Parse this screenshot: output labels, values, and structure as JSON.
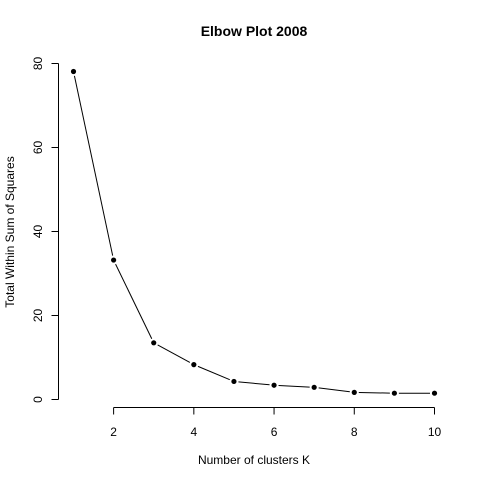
{
  "chart_data": {
    "type": "line",
    "title": "Elbow Plot  2008",
    "xlabel": "Number of clusters K",
    "ylabel": "Total Within Sum of Squares",
    "x": [
      1,
      2,
      3,
      4,
      5,
      6,
      7,
      8,
      9,
      10
    ],
    "values": [
      78.1,
      33.2,
      13.5,
      8.3,
      4.3,
      3.4,
      2.9,
      1.7,
      1.5,
      1.5
    ],
    "xlim": [
      1,
      10
    ],
    "ylim": [
      0,
      80
    ],
    "x_ticks": [
      2,
      4,
      6,
      8,
      10
    ],
    "y_ticks": [
      0,
      20,
      40,
      60,
      80
    ],
    "grid": false,
    "marker": "filled-circle",
    "colors": {
      "line": "#000000",
      "marker": "#000000",
      "background": "#ffffff"
    }
  }
}
